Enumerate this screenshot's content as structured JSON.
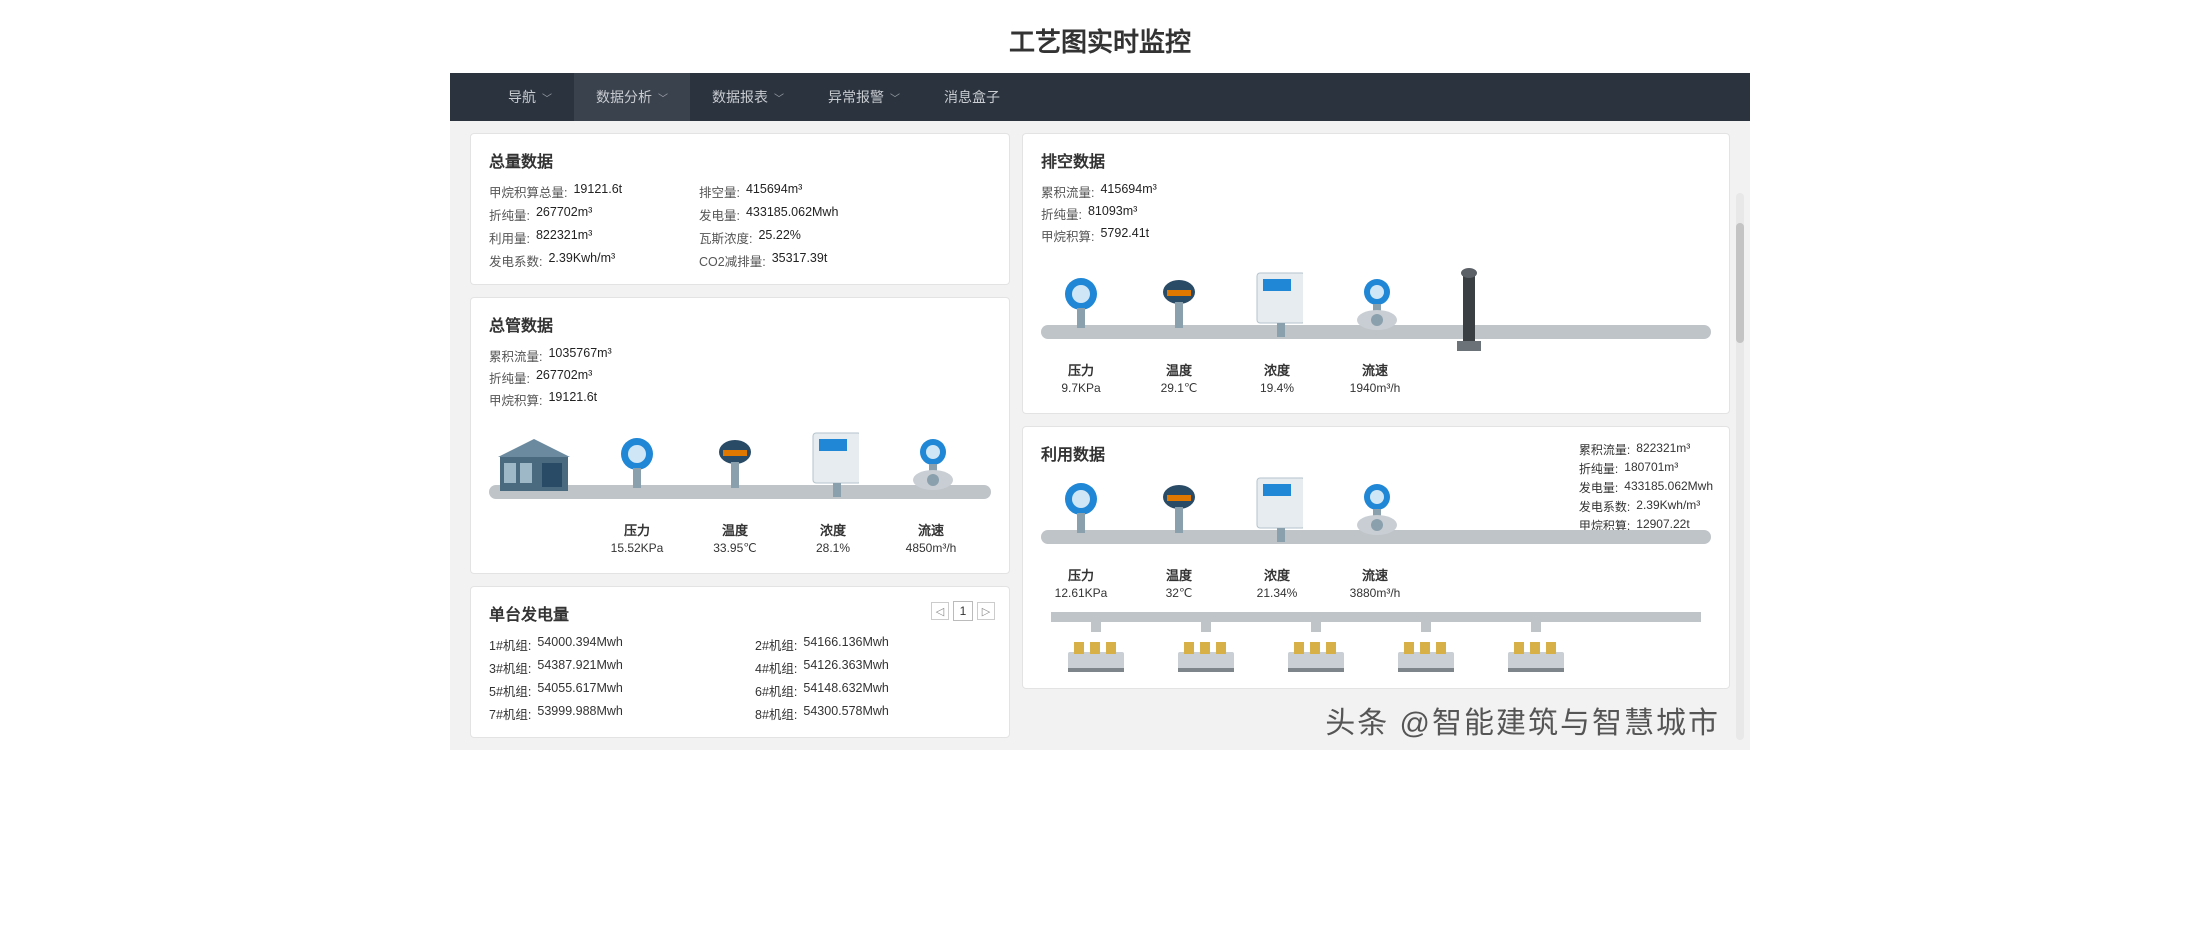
{
  "page_title": "工艺图实时监控",
  "nav": {
    "items": [
      {
        "label": "导航",
        "active": false,
        "dropdown": true
      },
      {
        "label": "数据分析",
        "active": true,
        "dropdown": true
      },
      {
        "label": "数据报表",
        "active": false,
        "dropdown": true
      },
      {
        "label": "异常报警",
        "active": false,
        "dropdown": true
      },
      {
        "label": "消息盒子",
        "active": false,
        "dropdown": false
      }
    ]
  },
  "colors": {
    "nav_bg": "#2b333e",
    "nav_active_bg": "#3a424d",
    "pipe": "#bfc4c9",
    "sensor_blue": "#1f87d6",
    "sensor_dark": "#2a4b66",
    "card_border": "#e3e3e3",
    "page_bg": "#f2f2f2"
  },
  "total_data": {
    "title": "总量数据",
    "rows": [
      {
        "k": "甲烷积算总量:",
        "v": "19121.6t"
      },
      {
        "k": "排空量:",
        "v": "415694m³"
      },
      {
        "k": "折纯量:",
        "v": "267702m³"
      },
      {
        "k": "发电量:",
        "v": "433185.062Mwh"
      },
      {
        "k": "利用量:",
        "v": "822321m³"
      },
      {
        "k": "瓦斯浓度:",
        "v": "25.22%"
      },
      {
        "k": "发电系数:",
        "v": "2.39Kwh/m³"
      },
      {
        "k": "CO2减排量:",
        "v": "35317.39t"
      }
    ]
  },
  "main_pipe": {
    "title": "总管数据",
    "summary": [
      {
        "k": "累积流量:",
        "v": "1035767m³"
      },
      {
        "k": "折纯量:",
        "v": "267702m³"
      },
      {
        "k": "甲烷积算:",
        "v": "19121.6t"
      }
    ],
    "sensors": [
      {
        "name": "压力",
        "value": "15.52KPa",
        "type": "pressure"
      },
      {
        "name": "温度",
        "value": "33.95℃",
        "type": "temperature"
      },
      {
        "name": "浓度",
        "value": "28.1%",
        "type": "concentration"
      },
      {
        "name": "流速",
        "value": "4850m³/h",
        "type": "flow"
      }
    ]
  },
  "vent_data": {
    "title": "排空数据",
    "summary": [
      {
        "k": "累积流量:",
        "v": "415694m³"
      },
      {
        "k": "折纯量:",
        "v": "81093m³"
      },
      {
        "k": "甲烷积算:",
        "v": "5792.41t"
      }
    ],
    "sensors": [
      {
        "name": "压力",
        "value": "9.7KPa",
        "type": "pressure"
      },
      {
        "name": "温度",
        "value": "29.1℃",
        "type": "temperature"
      },
      {
        "name": "浓度",
        "value": "19.4%",
        "type": "concentration"
      },
      {
        "name": "流速",
        "value": "1940m³/h",
        "type": "flow"
      }
    ]
  },
  "use_data": {
    "title": "利用数据",
    "side": [
      {
        "k": "累积流量:",
        "v": "822321m³"
      },
      {
        "k": "折纯量:",
        "v": "180701m³"
      },
      {
        "k": "发电量:",
        "v": "433185.062Mwh"
      },
      {
        "k": "发电系数:",
        "v": "2.39Kwh/m³"
      },
      {
        "k": "甲烷积算:",
        "v": "12907.22t"
      }
    ],
    "sensors": [
      {
        "name": "压力",
        "value": "12.61KPa",
        "type": "pressure"
      },
      {
        "name": "温度",
        "value": "32℃",
        "type": "temperature"
      },
      {
        "name": "浓度",
        "value": "21.34%",
        "type": "concentration"
      },
      {
        "name": "流速",
        "value": "3880m³/h",
        "type": "flow"
      }
    ],
    "engine_count": 5
  },
  "generation": {
    "title": "单台发电量",
    "page": "1",
    "units": [
      {
        "k": "1#机组:",
        "v": "54000.394Mwh"
      },
      {
        "k": "2#机组:",
        "v": "54166.136Mwh"
      },
      {
        "k": "3#机组:",
        "v": "54387.921Mwh"
      },
      {
        "k": "4#机组:",
        "v": "54126.363Mwh"
      },
      {
        "k": "5#机组:",
        "v": "54055.617Mwh"
      },
      {
        "k": "6#机组:",
        "v": "54148.632Mwh"
      },
      {
        "k": "7#机组:",
        "v": "53999.988Mwh"
      },
      {
        "k": "8#机组:",
        "v": "54300.578Mwh"
      }
    ]
  },
  "watermark": "头条 @智能建筑与智慧城市"
}
